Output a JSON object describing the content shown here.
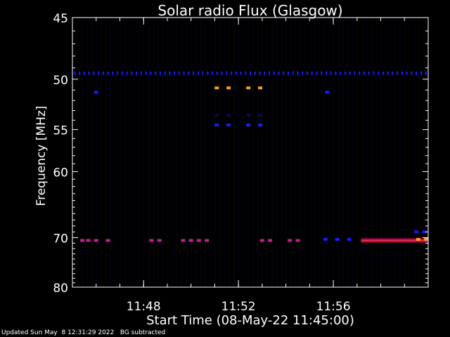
{
  "chart_data": {
    "type": "heatmap",
    "title": "Solar radio Flux (Glasgow)",
    "xlabel": "Start Time (08-May-22 11:45:00)",
    "ylabel": "Frequency [MHz]",
    "x_unit": "time",
    "x_range": [
      "11:45:00",
      "12:00:00"
    ],
    "x_ticks": [
      "11:48",
      "11:52",
      "11:56"
    ],
    "ylim": [
      45,
      80
    ],
    "y_scale": "reciprocal",
    "y_ticks": [
      45,
      50,
      55,
      60,
      70,
      80
    ],
    "background_color": "#000000",
    "grid": false,
    "colors": {
      "high": "#ff9a2e",
      "mid": "#b00050",
      "mid2": "#c0208a",
      "low": "#1a1aff",
      "faint": "#0b0b3a"
    },
    "features": [
      {
        "name": "baseline-channel",
        "frequency": 49.5,
        "time_start": "11:45",
        "time_end": "12:00",
        "level": "low",
        "pattern": "dashed"
      },
      {
        "name": "burst-upper",
        "frequency": 50.8,
        "times": [
          "11:51:05",
          "11:51:35",
          "11:52:25",
          "11:52:55"
        ],
        "level": "high"
      },
      {
        "name": "burst-mid",
        "frequency": 53.5,
        "times": [
          "11:51:05",
          "11:51:35",
          "11:52:25",
          "11:52:55"
        ],
        "level": "faint"
      },
      {
        "name": "burst-lower",
        "frequency": 54.5,
        "times": [
          "11:51:05",
          "11:51:35",
          "11:52:25",
          "11:52:55"
        ],
        "level": "low"
      },
      {
        "name": "spike-51",
        "frequency": 51.2,
        "times": [
          "11:46:00",
          "11:55:45"
        ],
        "level": "low"
      },
      {
        "name": "band-70-5",
        "frequency": 70.5,
        "time_start": "11:57:10",
        "time_end": "12:00:00",
        "level": "mid"
      },
      {
        "name": "band-70-5-dots",
        "frequency": 70.5,
        "times": [
          "11:45:25",
          "11:45:40",
          "11:46:00",
          "11:46:30",
          "11:48:20",
          "11:48:40",
          "11:49:40",
          "11:50:00",
          "11:50:20",
          "11:50:40",
          "11:53:00",
          "11:53:20",
          "11:54:10",
          "11:54:30"
        ],
        "level": "mid2"
      },
      {
        "name": "band-70-3-dots",
        "frequency": 70.3,
        "times": [
          "11:55:40",
          "11:56:10",
          "11:56:40"
        ],
        "level": "low"
      },
      {
        "name": "band-69",
        "frequency": 69.0,
        "times": [
          "11:59:30",
          "11:59:50"
        ],
        "level": "low"
      },
      {
        "name": "peak-70-3",
        "frequency": 70.3,
        "times": [
          "11:59:35",
          "11:59:55"
        ],
        "level": "high"
      }
    ]
  },
  "footer": {
    "updated": "Updated Sun May  8 12:31:29 2022   BG subtracted"
  }
}
